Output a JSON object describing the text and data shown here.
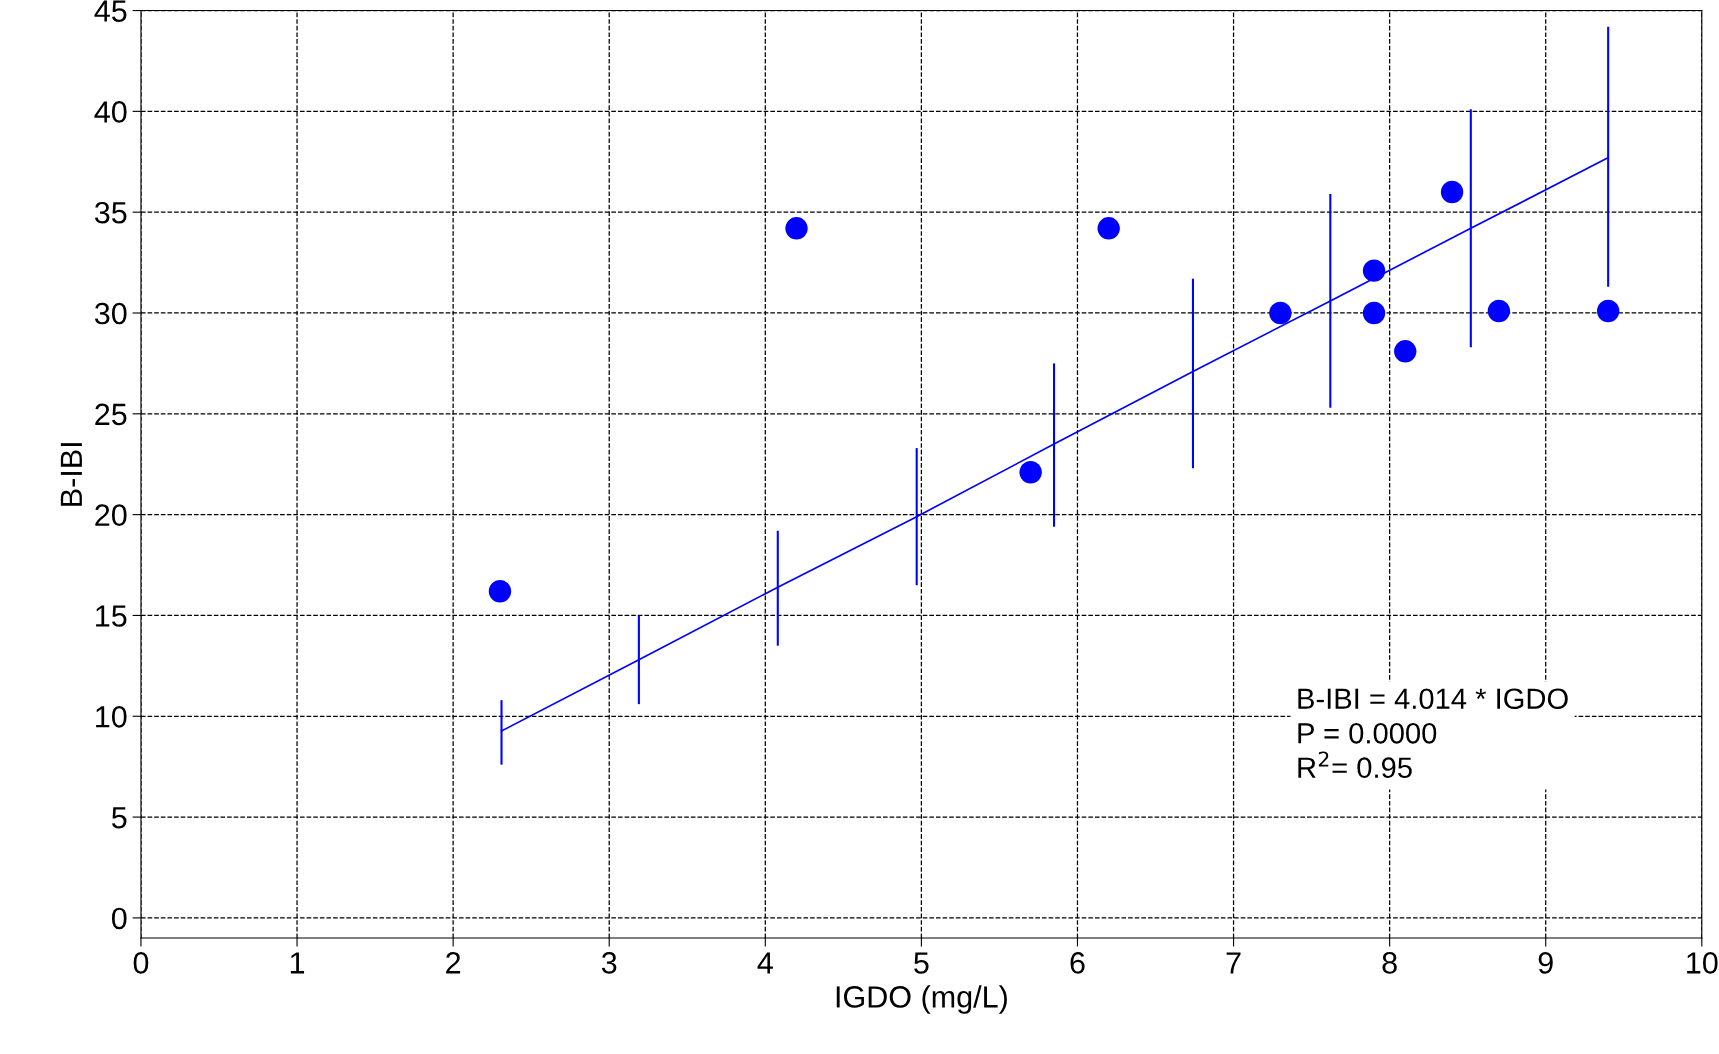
{
  "chart_data": {
    "type": "scatter",
    "xlabel": "IGDO (mg/L)",
    "ylabel": "B-IBI",
    "xlim": [
      0,
      10
    ],
    "xticks": [
      0,
      1,
      2,
      3,
      4,
      5,
      6,
      7,
      8,
      9,
      10
    ],
    "ylim": [
      -1,
      45
    ],
    "yticks": [
      0,
      5,
      10,
      15,
      20,
      25,
      30,
      35,
      40,
      45
    ],
    "grid": true,
    "series": [
      {
        "marker": "circle",
        "color": "#0000ff",
        "x": [
          2.3,
          4.2,
          5.7,
          6.2,
          7.3,
          7.9,
          7.9,
          8.1,
          8.4,
          8.7,
          9.4
        ],
        "values": [
          16.2,
          34.2,
          22.1,
          34.2,
          30.0,
          32.1,
          30.0,
          28.1,
          36.0,
          30.1,
          30.1
        ]
      },
      {
        "type": "line",
        "marker": "none",
        "color": "#0000ff",
        "x": [
          2.31,
          3.19,
          4.08,
          4.97,
          5.85,
          6.74,
          7.62,
          8.52,
          9.4
        ],
        "values": [
          9.27,
          12.8,
          16.4,
          19.9,
          23.5,
          27.1,
          30.6,
          34.2,
          37.7
        ],
        "errors": [
          [
            7.6,
            10.8
          ],
          [
            10.6,
            15.0
          ],
          [
            13.5,
            19.2
          ],
          [
            16.5,
            23.3
          ],
          [
            19.4,
            27.5
          ],
          [
            22.3,
            31.7
          ],
          [
            25.3,
            35.9
          ],
          [
            28.3,
            40.1
          ],
          [
            31.3,
            44.2
          ]
        ]
      }
    ],
    "annotations": [
      "B-IBI = 4.014 * IGDO\nP = 0.0000\nR$^{2}$= 0.95"
    ]
  }
}
